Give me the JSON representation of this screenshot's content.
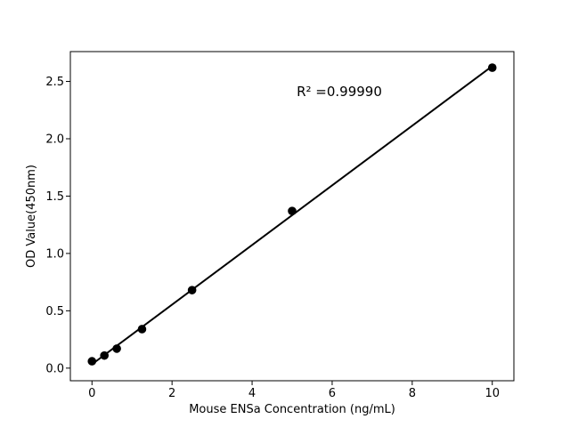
{
  "figure": {
    "background": "#ffffff"
  },
  "chart_data": {
    "type": "scatter",
    "title": "",
    "xlabel": "Mouse ENSa Concentration (ng/mL)",
    "ylabel": "OD Value(450nm)",
    "annotation": "R² =0.99990",
    "r_squared": "0.99990",
    "x": [
      0,
      0.31,
      0.62,
      1.25,
      2.5,
      5,
      10
    ],
    "y": [
      0.06,
      0.11,
      0.17,
      0.34,
      0.68,
      1.37,
      2.62
    ],
    "fit_line": {
      "x": [
        0,
        10
      ],
      "y": [
        0.0335,
        2.6335
      ]
    },
    "xlim": [
      -0.54,
      10.54
    ],
    "ylim": [
      -0.11,
      2.76
    ],
    "xticks": [
      0,
      2,
      4,
      6,
      8,
      10
    ],
    "xticklabels": [
      "0",
      "2",
      "4",
      "6",
      "8",
      "10"
    ],
    "yticks": [
      0.0,
      0.5,
      1.0,
      1.5,
      2.0,
      2.5
    ],
    "yticklabels": [
      "0.0",
      "0.5",
      "1.0",
      "1.5",
      "2.0",
      "2.5"
    ],
    "grid": false,
    "legend_visible": false,
    "colors": {
      "marker": "#000000",
      "line": "#000000",
      "axis": "#000000",
      "text": "#000000",
      "background": "#ffffff"
    }
  }
}
